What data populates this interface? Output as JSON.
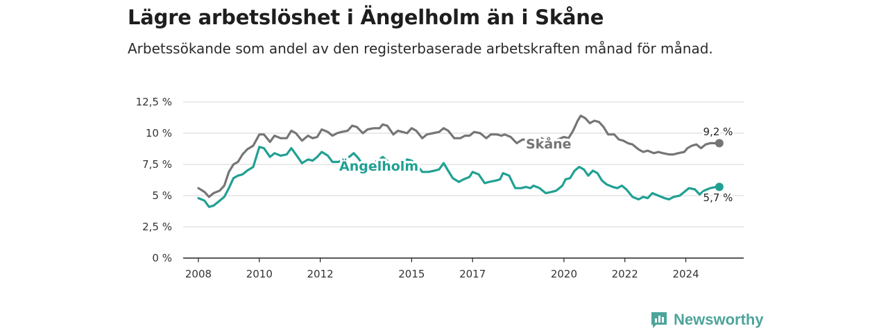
{
  "chart_data": {
    "type": "line",
    "title": "Lägre arbetslöshet i Ängelholm än i Skåne",
    "subtitle": "Arbetssökande som andel av den registerbaserade arbetskraften månad för månad.",
    "xlabel": "",
    "ylabel": "",
    "xlim": [
      2007.5,
      2025.9
    ],
    "ylim": [
      0,
      12.5
    ],
    "y_ticks": [
      {
        "value": 0,
        "label": "0 %"
      },
      {
        "value": 2.5,
        "label": "2,5 %"
      },
      {
        "value": 5,
        "label": "5 %"
      },
      {
        "value": 7.5,
        "label": "7,5 %"
      },
      {
        "value": 10,
        "label": "10 %"
      },
      {
        "value": 12.5,
        "label": "12,5 %"
      }
    ],
    "x_ticks": [
      {
        "value": 2008,
        "label": "2008"
      },
      {
        "value": 2010,
        "label": "2010"
      },
      {
        "value": 2012,
        "label": "2012"
      },
      {
        "value": 2015,
        "label": "2015"
      },
      {
        "value": 2017,
        "label": "2017"
      },
      {
        "value": 2020,
        "label": "2020"
      },
      {
        "value": 2022,
        "label": "2022"
      },
      {
        "value": 2024,
        "label": "2024"
      }
    ],
    "grid": true,
    "series": [
      {
        "name": "Skåne",
        "color": "#757575",
        "end_label": "9,2 %",
        "points": [
          [
            2008.0,
            5.6
          ],
          [
            2008.2,
            5.3
          ],
          [
            2008.35,
            4.9
          ],
          [
            2008.5,
            5.2
          ],
          [
            2008.7,
            5.4
          ],
          [
            2008.85,
            5.8
          ],
          [
            2009.0,
            6.9
          ],
          [
            2009.15,
            7.5
          ],
          [
            2009.3,
            7.7
          ],
          [
            2009.45,
            8.3
          ],
          [
            2009.6,
            8.7
          ],
          [
            2009.8,
            9.0
          ],
          [
            2010.0,
            9.9
          ],
          [
            2010.15,
            9.9
          ],
          [
            2010.35,
            9.3
          ],
          [
            2010.5,
            9.8
          ],
          [
            2010.7,
            9.6
          ],
          [
            2010.9,
            9.6
          ],
          [
            2011.05,
            10.2
          ],
          [
            2011.2,
            10.0
          ],
          [
            2011.4,
            9.4
          ],
          [
            2011.6,
            9.8
          ],
          [
            2011.75,
            9.6
          ],
          [
            2011.9,
            9.7
          ],
          [
            2012.05,
            10.3
          ],
          [
            2012.25,
            10.1
          ],
          [
            2012.4,
            9.8
          ],
          [
            2012.55,
            10.0
          ],
          [
            2012.7,
            10.1
          ],
          [
            2012.9,
            10.2
          ],
          [
            2013.05,
            10.6
          ],
          [
            2013.2,
            10.5
          ],
          [
            2013.4,
            10.0
          ],
          [
            2013.55,
            10.3
          ],
          [
            2013.75,
            10.4
          ],
          [
            2013.95,
            10.4
          ],
          [
            2014.05,
            10.7
          ],
          [
            2014.2,
            10.6
          ],
          [
            2014.4,
            9.9
          ],
          [
            2014.55,
            10.2
          ],
          [
            2014.7,
            10.1
          ],
          [
            2014.85,
            10.0
          ],
          [
            2015.0,
            10.4
          ],
          [
            2015.15,
            10.2
          ],
          [
            2015.35,
            9.6
          ],
          [
            2015.5,
            9.9
          ],
          [
            2015.7,
            10.0
          ],
          [
            2015.9,
            10.1
          ],
          [
            2016.05,
            10.4
          ],
          [
            2016.2,
            10.2
          ],
          [
            2016.4,
            9.6
          ],
          [
            2016.6,
            9.6
          ],
          [
            2016.75,
            9.8
          ],
          [
            2016.9,
            9.8
          ],
          [
            2017.05,
            10.1
          ],
          [
            2017.25,
            10.0
          ],
          [
            2017.45,
            9.6
          ],
          [
            2017.6,
            9.9
          ],
          [
            2017.8,
            9.9
          ],
          [
            2017.95,
            9.8
          ],
          [
            2018.05,
            9.9
          ],
          [
            2018.25,
            9.7
          ],
          [
            2018.45,
            9.2
          ],
          [
            2018.65,
            9.5
          ],
          [
            2018.85,
            9.4
          ],
          [
            2019.05,
            9.4
          ],
          [
            2019.25,
            9.6
          ],
          [
            2019.45,
            9.4
          ],
          [
            2019.6,
            9.0
          ],
          [
            2019.8,
            9.5
          ],
          [
            2020.0,
            9.7
          ],
          [
            2020.15,
            9.6
          ],
          [
            2020.3,
            10.2
          ],
          [
            2020.45,
            11.0
          ],
          [
            2020.55,
            11.4
          ],
          [
            2020.7,
            11.2
          ],
          [
            2020.85,
            10.8
          ],
          [
            2021.0,
            11.0
          ],
          [
            2021.15,
            10.9
          ],
          [
            2021.3,
            10.5
          ],
          [
            2021.45,
            9.9
          ],
          [
            2021.65,
            9.9
          ],
          [
            2021.8,
            9.5
          ],
          [
            2021.95,
            9.4
          ],
          [
            2022.1,
            9.2
          ],
          [
            2022.25,
            9.1
          ],
          [
            2022.45,
            8.7
          ],
          [
            2022.6,
            8.5
          ],
          [
            2022.75,
            8.6
          ],
          [
            2022.95,
            8.4
          ],
          [
            2023.1,
            8.5
          ],
          [
            2023.25,
            8.4
          ],
          [
            2023.45,
            8.3
          ],
          [
            2023.6,
            8.3
          ],
          [
            2023.75,
            8.4
          ],
          [
            2023.95,
            8.5
          ],
          [
            2024.05,
            8.8
          ],
          [
            2024.2,
            9.0
          ],
          [
            2024.35,
            9.1
          ],
          [
            2024.5,
            8.8
          ],
          [
            2024.65,
            9.1
          ],
          [
            2024.8,
            9.2
          ],
          [
            2025.0,
            9.2
          ],
          [
            2025.1,
            9.2
          ]
        ]
      },
      {
        "name": "Ängelholm",
        "color": "#20a093",
        "end_label": "5,7 %",
        "points": [
          [
            2008.0,
            4.8
          ],
          [
            2008.2,
            4.6
          ],
          [
            2008.35,
            4.1
          ],
          [
            2008.5,
            4.2
          ],
          [
            2008.7,
            4.6
          ],
          [
            2008.85,
            4.9
          ],
          [
            2009.0,
            5.6
          ],
          [
            2009.15,
            6.4
          ],
          [
            2009.3,
            6.6
          ],
          [
            2009.45,
            6.7
          ],
          [
            2009.6,
            7.0
          ],
          [
            2009.8,
            7.3
          ],
          [
            2010.0,
            8.9
          ],
          [
            2010.15,
            8.8
          ],
          [
            2010.35,
            8.1
          ],
          [
            2010.5,
            8.4
          ],
          [
            2010.7,
            8.2
          ],
          [
            2010.9,
            8.3
          ],
          [
            2011.05,
            8.8
          ],
          [
            2011.2,
            8.3
          ],
          [
            2011.4,
            7.6
          ],
          [
            2011.6,
            7.9
          ],
          [
            2011.75,
            7.8
          ],
          [
            2011.9,
            8.1
          ],
          [
            2012.05,
            8.5
          ],
          [
            2012.25,
            8.2
          ],
          [
            2012.4,
            7.7
          ],
          [
            2012.6,
            7.7
          ],
          [
            2012.75,
            7.9
          ],
          [
            2012.95,
            8.1
          ],
          [
            2013.1,
            8.4
          ],
          [
            2013.25,
            8.0
          ],
          [
            2013.45,
            7.3
          ],
          [
            2013.6,
            7.5
          ],
          [
            2013.8,
            7.7
          ],
          [
            2013.95,
            7.9
          ],
          [
            2014.05,
            8.1
          ],
          [
            2014.2,
            7.8
          ],
          [
            2014.4,
            7.0
          ],
          [
            2014.55,
            7.3
          ],
          [
            2014.7,
            7.5
          ],
          [
            2014.85,
            7.9
          ],
          [
            2015.0,
            7.8
          ],
          [
            2015.15,
            7.5
          ],
          [
            2015.35,
            6.9
          ],
          [
            2015.55,
            6.9
          ],
          [
            2015.75,
            7.0
          ],
          [
            2015.9,
            7.1
          ],
          [
            2016.05,
            7.6
          ],
          [
            2016.2,
            7.0
          ],
          [
            2016.35,
            6.4
          ],
          [
            2016.55,
            6.1
          ],
          [
            2016.7,
            6.3
          ],
          [
            2016.9,
            6.5
          ],
          [
            2017.0,
            6.9
          ],
          [
            2017.2,
            6.7
          ],
          [
            2017.4,
            6.0
          ],
          [
            2017.55,
            6.1
          ],
          [
            2017.75,
            6.2
          ],
          [
            2017.9,
            6.3
          ],
          [
            2018.0,
            6.8
          ],
          [
            2018.2,
            6.6
          ],
          [
            2018.4,
            5.6
          ],
          [
            2018.6,
            5.6
          ],
          [
            2018.75,
            5.7
          ],
          [
            2018.9,
            5.6
          ],
          [
            2019.0,
            5.8
          ],
          [
            2019.2,
            5.6
          ],
          [
            2019.4,
            5.2
          ],
          [
            2019.6,
            5.3
          ],
          [
            2019.75,
            5.4
          ],
          [
            2019.95,
            5.8
          ],
          [
            2020.05,
            6.3
          ],
          [
            2020.2,
            6.4
          ],
          [
            2020.35,
            7.0
          ],
          [
            2020.5,
            7.3
          ],
          [
            2020.65,
            7.1
          ],
          [
            2020.8,
            6.6
          ],
          [
            2020.95,
            7.0
          ],
          [
            2021.1,
            6.8
          ],
          [
            2021.25,
            6.2
          ],
          [
            2021.4,
            5.9
          ],
          [
            2021.6,
            5.7
          ],
          [
            2021.75,
            5.6
          ],
          [
            2021.9,
            5.8
          ],
          [
            2022.05,
            5.5
          ],
          [
            2022.25,
            4.9
          ],
          [
            2022.45,
            4.7
          ],
          [
            2022.6,
            4.9
          ],
          [
            2022.75,
            4.8
          ],
          [
            2022.9,
            5.2
          ],
          [
            2023.1,
            5.0
          ],
          [
            2023.3,
            4.8
          ],
          [
            2023.45,
            4.7
          ],
          [
            2023.6,
            4.9
          ],
          [
            2023.8,
            5.0
          ],
          [
            2023.95,
            5.3
          ],
          [
            2024.1,
            5.6
          ],
          [
            2024.3,
            5.5
          ],
          [
            2024.45,
            5.1
          ],
          [
            2024.6,
            5.4
          ],
          [
            2024.8,
            5.6
          ],
          [
            2025.0,
            5.7
          ],
          [
            2025.1,
            5.7
          ]
        ]
      }
    ],
    "legend": "inline-labels"
  },
  "brand": {
    "name": "Newsworthy",
    "color": "#4ea49b",
    "icon": "newsworthy-bar-chart-icon"
  }
}
